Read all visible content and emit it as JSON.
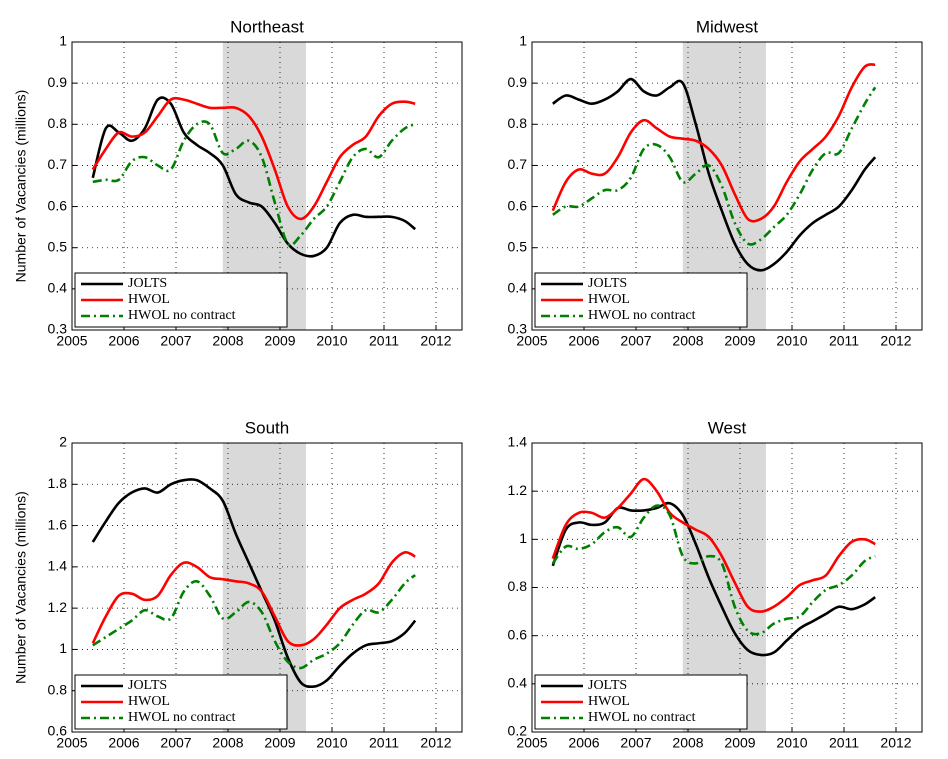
{
  "chart_data": [
    {
      "type": "line",
      "title": "Northeast",
      "ylabel": "Number of Vacancies (millions)",
      "x": [
        2005.4,
        2005.65,
        2005.9,
        2006.15,
        2006.4,
        2006.65,
        2006.9,
        2007.15,
        2007.4,
        2007.65,
        2007.9,
        2008.15,
        2008.4,
        2008.65,
        2008.9,
        2009.15,
        2009.4,
        2009.65,
        2009.9,
        2010.15,
        2010.4,
        2010.65,
        2010.9,
        2011.15,
        2011.4,
        2011.6
      ],
      "series": [
        {
          "name": "JOLTS",
          "color": "#000000",
          "dash": "solid",
          "values": [
            0.67,
            0.79,
            0.78,
            0.76,
            0.79,
            0.86,
            0.85,
            0.78,
            0.75,
            0.73,
            0.7,
            0.63,
            0.61,
            0.6,
            0.56,
            0.51,
            0.485,
            0.48,
            0.5,
            0.56,
            0.58,
            0.575,
            0.575,
            0.575,
            0.565,
            0.545
          ]
        },
        {
          "name": "HWOL",
          "color": "#ff0000",
          "dash": "solid",
          "values": [
            0.69,
            0.74,
            0.78,
            0.77,
            0.78,
            0.82,
            0.86,
            0.86,
            0.85,
            0.84,
            0.84,
            0.84,
            0.82,
            0.77,
            0.69,
            0.6,
            0.57,
            0.6,
            0.66,
            0.72,
            0.75,
            0.77,
            0.82,
            0.85,
            0.855,
            0.85
          ]
        },
        {
          "name": "HWOL no contract",
          "color": "#008000",
          "dash": "dashdot",
          "values": [
            0.66,
            0.665,
            0.665,
            0.71,
            0.72,
            0.7,
            0.69,
            0.76,
            0.8,
            0.8,
            0.73,
            0.74,
            0.76,
            0.72,
            0.61,
            0.51,
            0.53,
            0.57,
            0.6,
            0.66,
            0.72,
            0.74,
            0.72,
            0.76,
            0.79,
            0.8
          ]
        }
      ],
      "shaded_x": [
        2007.9,
        2009.5
      ],
      "xlim": [
        2005,
        2012.5
      ],
      "xticks": [
        2005,
        2006,
        2007,
        2008,
        2009,
        2010,
        2011,
        2012
      ],
      "ylim": [
        0.3,
        1
      ],
      "yticks": [
        0.3,
        0.4,
        0.5,
        0.6,
        0.7,
        0.8,
        0.9,
        1
      ],
      "grid": true,
      "legend": "lower-left"
    },
    {
      "type": "line",
      "title": "Midwest",
      "x": [
        2005.4,
        2005.65,
        2005.9,
        2006.15,
        2006.4,
        2006.65,
        2006.9,
        2007.15,
        2007.4,
        2007.65,
        2007.9,
        2008.15,
        2008.4,
        2008.65,
        2008.9,
        2009.15,
        2009.4,
        2009.65,
        2009.9,
        2010.15,
        2010.4,
        2010.65,
        2010.9,
        2011.15,
        2011.4,
        2011.6
      ],
      "series": [
        {
          "name": "JOLTS",
          "color": "#000000",
          "dash": "solid",
          "values": [
            0.85,
            0.87,
            0.86,
            0.85,
            0.86,
            0.88,
            0.91,
            0.88,
            0.87,
            0.89,
            0.9,
            0.8,
            0.68,
            0.59,
            0.51,
            0.46,
            0.445,
            0.46,
            0.49,
            0.53,
            0.56,
            0.58,
            0.6,
            0.64,
            0.69,
            0.72
          ]
        },
        {
          "name": "HWOL",
          "color": "#ff0000",
          "dash": "solid",
          "values": [
            0.59,
            0.66,
            0.69,
            0.68,
            0.68,
            0.72,
            0.78,
            0.81,
            0.79,
            0.77,
            0.765,
            0.76,
            0.74,
            0.7,
            0.63,
            0.57,
            0.57,
            0.6,
            0.66,
            0.71,
            0.74,
            0.77,
            0.82,
            0.89,
            0.94,
            0.945
          ]
        },
        {
          "name": "HWOL no contract",
          "color": "#008000",
          "dash": "dashdot",
          "values": [
            0.58,
            0.6,
            0.6,
            0.62,
            0.64,
            0.64,
            0.67,
            0.74,
            0.75,
            0.72,
            0.66,
            0.68,
            0.7,
            0.65,
            0.56,
            0.51,
            0.52,
            0.55,
            0.58,
            0.63,
            0.69,
            0.73,
            0.73,
            0.79,
            0.85,
            0.89
          ]
        }
      ],
      "shaded_x": [
        2007.9,
        2009.5
      ],
      "xlim": [
        2005,
        2012.5
      ],
      "xticks": [
        2005,
        2006,
        2007,
        2008,
        2009,
        2010,
        2011,
        2012
      ],
      "ylim": [
        0.3,
        1
      ],
      "yticks": [
        0.3,
        0.4,
        0.5,
        0.6,
        0.7,
        0.8,
        0.9,
        1
      ],
      "grid": true,
      "legend": "lower-left"
    },
    {
      "type": "line",
      "title": "South",
      "ylabel": "Number of Vacancies (millions)",
      "x": [
        2005.4,
        2005.65,
        2005.9,
        2006.15,
        2006.4,
        2006.65,
        2006.9,
        2007.15,
        2007.4,
        2007.65,
        2007.9,
        2008.15,
        2008.4,
        2008.65,
        2008.9,
        2009.15,
        2009.4,
        2009.65,
        2009.9,
        2010.15,
        2010.4,
        2010.65,
        2010.9,
        2011.15,
        2011.4,
        2011.6
      ],
      "series": [
        {
          "name": "JOLTS",
          "color": "#000000",
          "dash": "solid",
          "values": [
            1.52,
            1.62,
            1.71,
            1.76,
            1.78,
            1.76,
            1.8,
            1.82,
            1.82,
            1.78,
            1.72,
            1.56,
            1.42,
            1.28,
            1.14,
            0.96,
            0.84,
            0.82,
            0.85,
            0.92,
            0.98,
            1.02,
            1.03,
            1.04,
            1.08,
            1.14
          ]
        },
        {
          "name": "HWOL",
          "color": "#ff0000",
          "dash": "solid",
          "values": [
            1.03,
            1.16,
            1.26,
            1.27,
            1.24,
            1.26,
            1.36,
            1.42,
            1.4,
            1.35,
            1.34,
            1.33,
            1.32,
            1.28,
            1.16,
            1.04,
            1.02,
            1.05,
            1.12,
            1.2,
            1.24,
            1.27,
            1.32,
            1.42,
            1.47,
            1.45
          ]
        },
        {
          "name": "HWOL no contract",
          "color": "#008000",
          "dash": "dashdot",
          "values": [
            1.02,
            1.06,
            1.1,
            1.14,
            1.19,
            1.16,
            1.15,
            1.28,
            1.33,
            1.26,
            1.15,
            1.18,
            1.23,
            1.18,
            1.04,
            0.94,
            0.91,
            0.95,
            0.98,
            1.03,
            1.12,
            1.19,
            1.18,
            1.24,
            1.32,
            1.36
          ]
        }
      ],
      "shaded_x": [
        2007.9,
        2009.5
      ],
      "xlim": [
        2005,
        2012.5
      ],
      "xticks": [
        2005,
        2006,
        2007,
        2008,
        2009,
        2010,
        2011,
        2012
      ],
      "ylim": [
        0.6,
        2
      ],
      "yticks": [
        0.6,
        0.8,
        1,
        1.2,
        1.4,
        1.6,
        1.8,
        2
      ],
      "grid": true,
      "legend": "lower-left"
    },
    {
      "type": "line",
      "title": "West",
      "x": [
        2005.4,
        2005.65,
        2005.9,
        2006.15,
        2006.4,
        2006.65,
        2006.9,
        2007.15,
        2007.4,
        2007.65,
        2007.9,
        2008.15,
        2008.4,
        2008.65,
        2008.9,
        2009.15,
        2009.4,
        2009.65,
        2009.9,
        2010.15,
        2010.4,
        2010.65,
        2010.9,
        2011.15,
        2011.4,
        2011.6
      ],
      "series": [
        {
          "name": "JOLTS",
          "color": "#000000",
          "dash": "solid",
          "values": [
            0.89,
            1.04,
            1.07,
            1.06,
            1.07,
            1.13,
            1.12,
            1.12,
            1.13,
            1.15,
            1.1,
            0.98,
            0.84,
            0.72,
            0.61,
            0.54,
            0.52,
            0.53,
            0.58,
            0.63,
            0.66,
            0.69,
            0.72,
            0.71,
            0.73,
            0.76
          ]
        },
        {
          "name": "HWOL",
          "color": "#ff0000",
          "dash": "solid",
          "values": [
            0.92,
            1.06,
            1.11,
            1.11,
            1.09,
            1.13,
            1.19,
            1.25,
            1.2,
            1.11,
            1.07,
            1.04,
            1.01,
            0.93,
            0.82,
            0.72,
            0.7,
            0.72,
            0.76,
            0.81,
            0.83,
            0.85,
            0.93,
            0.99,
            1.0,
            0.98
          ]
        },
        {
          "name": "HWOL no contract",
          "color": "#008000",
          "dash": "dashdot",
          "values": [
            0.9,
            0.97,
            0.96,
            0.98,
            1.03,
            1.05,
            1.01,
            1.09,
            1.14,
            1.1,
            0.93,
            0.9,
            0.93,
            0.9,
            0.72,
            0.62,
            0.61,
            0.65,
            0.67,
            0.68,
            0.74,
            0.79,
            0.81,
            0.85,
            0.91,
            0.93
          ]
        }
      ],
      "shaded_x": [
        2007.9,
        2009.5
      ],
      "xlim": [
        2005,
        2012.5
      ],
      "xticks": [
        2005,
        2006,
        2007,
        2008,
        2009,
        2010,
        2011,
        2012
      ],
      "ylim": [
        0.2,
        1.4
      ],
      "yticks": [
        0.2,
        0.4,
        0.6,
        0.8,
        1,
        1.2,
        1.4
      ],
      "grid": true,
      "legend": "lower-left"
    }
  ]
}
